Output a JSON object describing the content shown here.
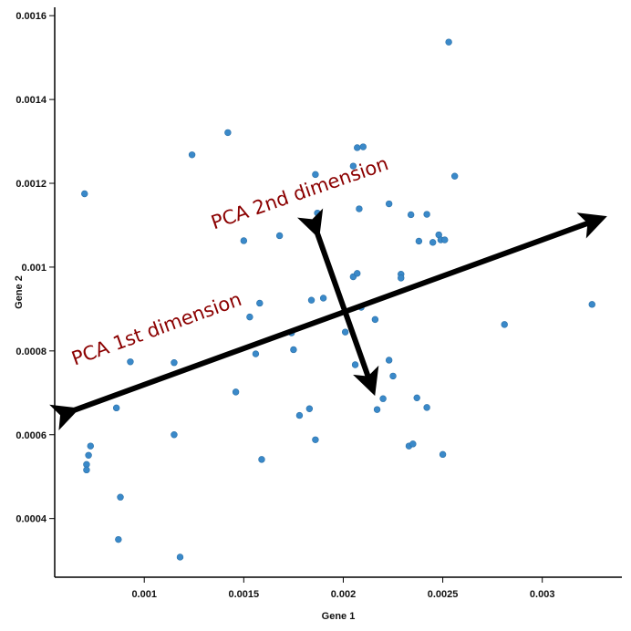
{
  "chart_data": {
    "type": "scatter",
    "xlabel": "Gene 1",
    "ylabel": "Gene 2",
    "xlim": [
      0.00055,
      0.0034
    ],
    "ylim": [
      0.00026,
      0.00162
    ],
    "xticks": [
      {
        "value": 0.001,
        "label": "0.001"
      },
      {
        "value": 0.0015,
        "label": "0.0015"
      },
      {
        "value": 0.002,
        "label": "0.002"
      },
      {
        "value": 0.0025,
        "label": "0.0025"
      },
      {
        "value": 0.003,
        "label": "0.003"
      }
    ],
    "yticks": [
      {
        "value": 0.0004,
        "label": "0.0004"
      },
      {
        "value": 0.0006,
        "label": "0.0006"
      },
      {
        "value": 0.0008,
        "label": "0.0008"
      },
      {
        "value": 0.001,
        "label": "0.001"
      },
      {
        "value": 0.0012,
        "label": "0.0012"
      },
      {
        "value": 0.0014,
        "label": "0.0014"
      },
      {
        "value": 0.0016,
        "label": "0.0016"
      }
    ],
    "point_color": "#3a89c9",
    "points": [
      [
        0.0007,
        0.001175
      ],
      [
        0.00073,
        0.000573
      ],
      [
        0.00072,
        0.000551
      ],
      [
        0.00071,
        0.000529
      ],
      [
        0.00071,
        0.000516
      ],
      [
        0.00086,
        0.000664
      ],
      [
        0.00088,
        0.000451
      ],
      [
        0.00087,
        0.00035
      ],
      [
        0.00093,
        0.000774
      ],
      [
        0.00115,
        0.000772
      ],
      [
        0.00115,
        0.0006
      ],
      [
        0.00118,
        0.000308
      ],
      [
        0.00124,
        0.001268
      ],
      [
        0.00142,
        0.001321
      ],
      [
        0.00146,
        0.000702
      ],
      [
        0.0015,
        0.001063
      ],
      [
        0.00153,
        0.000881
      ],
      [
        0.00156,
        0.000793
      ],
      [
        0.00158,
        0.000914
      ],
      [
        0.00159,
        0.000541
      ],
      [
        0.00168,
        0.001075
      ],
      [
        0.00174,
        0.000843
      ],
      [
        0.00175,
        0.000803
      ],
      [
        0.00178,
        0.000646
      ],
      [
        0.00183,
        0.000662
      ],
      [
        0.00184,
        0.000921
      ],
      [
        0.00186,
        0.001221
      ],
      [
        0.00187,
        0.001129
      ],
      [
        0.00186,
        0.000588
      ],
      [
        0.0019,
        0.000926
      ],
      [
        0.00201,
        0.000845
      ],
      [
        0.00205,
        0.001241
      ],
      [
        0.00205,
        0.000977
      ],
      [
        0.00207,
        0.001285
      ],
      [
        0.00206,
        0.000767
      ],
      [
        0.00207,
        0.000985
      ],
      [
        0.00208,
        0.001139
      ],
      [
        0.0021,
        0.001287
      ],
      [
        0.00209,
        0.000904
      ],
      [
        0.00216,
        0.000875
      ],
      [
        0.00217,
        0.00066
      ],
      [
        0.0022,
        0.000686
      ],
      [
        0.00223,
        0.001151
      ],
      [
        0.00223,
        0.000778
      ],
      [
        0.00225,
        0.00074
      ],
      [
        0.00229,
        0.000983
      ],
      [
        0.00229,
        0.000974
      ],
      [
        0.00233,
        0.000573
      ],
      [
        0.00234,
        0.001125
      ],
      [
        0.00235,
        0.000578
      ],
      [
        0.00237,
        0.000688
      ],
      [
        0.00238,
        0.001062
      ],
      [
        0.00242,
        0.000665
      ],
      [
        0.00242,
        0.001126
      ],
      [
        0.00245,
        0.001059
      ],
      [
        0.00248,
        0.001077
      ],
      [
        0.00249,
        0.001065
      ],
      [
        0.00251,
        0.001065
      ],
      [
        0.0025,
        0.000553
      ],
      [
        0.00253,
        0.001537
      ],
      [
        0.00256,
        0.001217
      ],
      [
        0.00281,
        0.000863
      ],
      [
        0.00325,
        0.000911
      ]
    ],
    "annotations": [
      {
        "text": "PCA 1st dimension",
        "arrow_from": [
          0.00065,
          0.000659
        ],
        "arrow_to": [
          0.0033,
          0.001117
        ],
        "label_anchor": [
          0.00065,
          0.000765
        ]
      },
      {
        "text": "PCA 2nd dimension",
        "arrow_from": [
          0.00187,
          0.00108
        ],
        "arrow_to": [
          0.00215,
          0.000705
        ],
        "label_anchor": [
          0.00135,
          0.00109
        ]
      }
    ]
  }
}
